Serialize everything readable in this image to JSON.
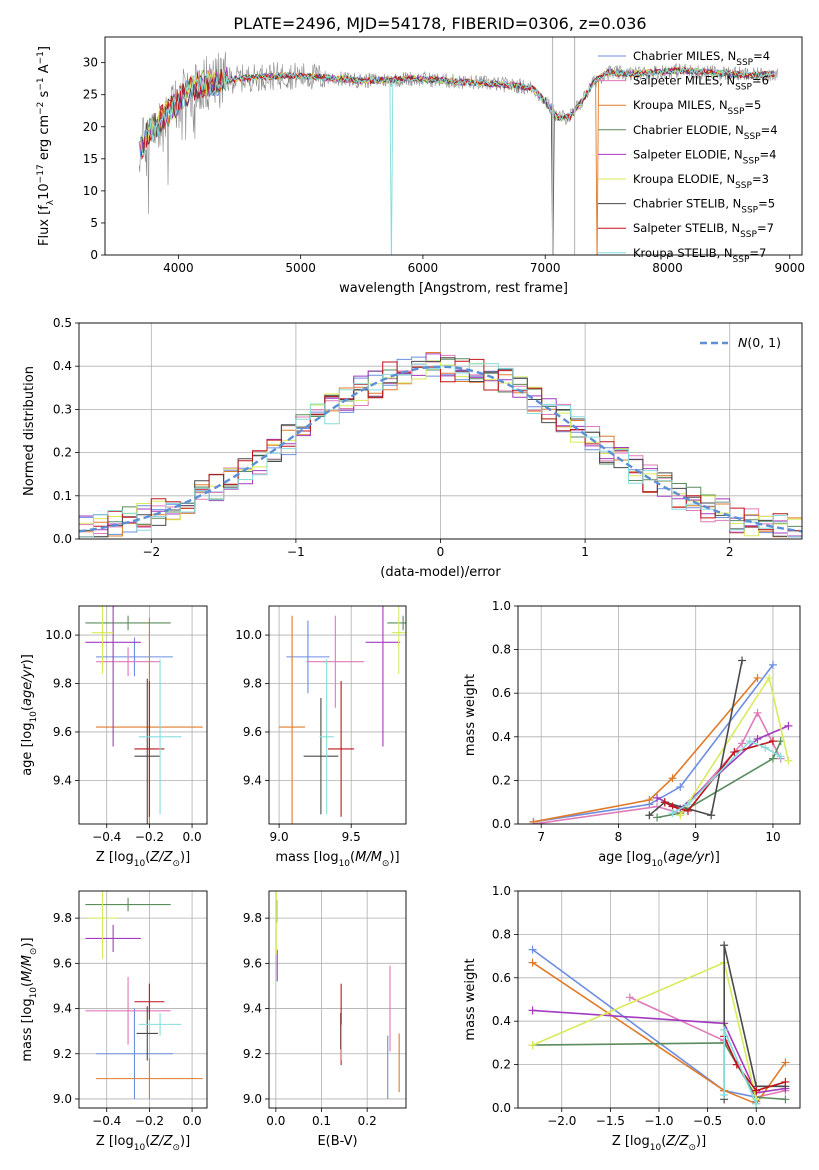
{
  "figure_title": "PLATE=2496, MJD=54178, FIBERID=0306, z=0.036",
  "colors": {
    "Chabrier MILES": "#6c8ee0",
    "Salpeter MILES": "#e07ab8",
    "Kroupa MILES": "#e07b2a",
    "Chabrier ELODIE": "#5b8c5e",
    "Salpeter ELODIE": "#a23bbf",
    "Kroupa ELODIE": "#d9ea5a",
    "Chabrier STELIB": "#4a4a4a",
    "Salpeter STELIB": "#c0141c",
    "Kroupa STELIB": "#86dcdc",
    "normal_curve": "#5b8fd6",
    "grid": "#b0b0b0"
  },
  "chart_data": [
    {
      "id": "spectrum",
      "type": "line",
      "xlabel": "wavelength [Angstrom, rest frame]",
      "ylabel": "Flux [f_λ 10^-17 erg cm^-2 s^-1 A^-1]",
      "xlim": [
        3400,
        9100
      ],
      "ylim": [
        0,
        34
      ],
      "xticks": [
        4000,
        5000,
        6000,
        7000,
        8000,
        9000
      ],
      "yticks": [
        0,
        5,
        10,
        15,
        20,
        25,
        30
      ],
      "grid": false,
      "legend_position": "top-right",
      "legend": [
        "Chabrier MILES, N_SSP=4",
        "Salpeter MILES, N_SSP=6",
        "Kroupa MILES, N_SSP=5",
        "Chabrier ELODIE, N_SSP=4",
        "Salpeter ELODIE, N_SSP=4",
        "Kroupa ELODIE, N_SSP=3",
        "Chabrier STELIB, N_SSP=5",
        "Salpeter STELIB, N_SSP=7",
        "Kroupa STELIB, N_SSP=7"
      ],
      "data_profile": {
        "x": [
          3680,
          3750,
          3850,
          3950,
          4050,
          4150,
          4300,
          4500,
          4700,
          4900,
          5100,
          5300,
          5500,
          5700,
          5900,
          6100,
          6300,
          6500,
          6700,
          6800,
          6900,
          7000,
          7100,
          7200,
          7300,
          7400,
          7500,
          7700,
          7900,
          8100,
          8300,
          8500,
          8700,
          8900
        ],
        "y": [
          16,
          19,
          21,
          23,
          25,
          26.5,
          27,
          27.5,
          27.8,
          28,
          27.8,
          27.5,
          27.2,
          27.3,
          27.5,
          27.3,
          27,
          26.8,
          26.5,
          26.3,
          26,
          24,
          21.5,
          21.5,
          24,
          27,
          28.5,
          28.2,
          28.5,
          28.8,
          28.5,
          28.3,
          28,
          28.3
        ]
      }
    },
    {
      "id": "residuals",
      "type": "histogram",
      "xlabel": "(data-model)/error",
      "ylabel": "Normed distribution",
      "xlim": [
        -2.5,
        2.5
      ],
      "ylim": [
        0,
        0.5
      ],
      "xticks": [
        -2,
        -1,
        0,
        1,
        2
      ],
      "yticks": [
        0.0,
        0.1,
        0.2,
        0.3,
        0.4,
        0.5
      ],
      "grid": true,
      "legend": [
        "N(0, 1)"
      ],
      "legend_position": "top-right"
    },
    {
      "id": "age_vs_Z",
      "type": "errorbar",
      "xlabel": "Z [log10(Z/Z⊙)]",
      "ylabel": "age [log10(age/yr)]",
      "xlim": [
        -0.53,
        0.07
      ],
      "ylim": [
        9.22,
        10.12
      ],
      "xticks": [
        -0.4,
        -0.2,
        0.0
      ],
      "yticks": [
        9.4,
        9.6,
        9.8,
        10.0
      ],
      "grid": true,
      "points": [
        {
          "model": "Chabrier MILES",
          "x": -0.27,
          "xerr": 0.18,
          "y": 9.91,
          "yerr": 0.08
        },
        {
          "model": "Salpeter MILES",
          "x": -0.3,
          "xerr": 0.15,
          "y": 9.89,
          "yerr": 0.06
        },
        {
          "model": "Kroupa MILES",
          "x": -0.2,
          "xerr": 0.25,
          "y": 9.62,
          "yerr": 0.45
        },
        {
          "model": "Chabrier ELODIE",
          "x": -0.3,
          "xerr": 0.2,
          "y": 10.05,
          "yerr": 0.03
        },
        {
          "model": "Salpeter ELODIE",
          "x": -0.37,
          "xerr": 0.13,
          "y": 9.97,
          "yerr": 0.43
        },
        {
          "model": "Kroupa ELODIE",
          "x": -0.42,
          "xerr": 0.05,
          "y": 10.01,
          "yerr": 0.17
        },
        {
          "model": "Chabrier STELIB",
          "x": -0.21,
          "xerr": 0.06,
          "y": 9.5,
          "yerr": 0.32
        },
        {
          "model": "Salpeter STELIB",
          "x": -0.2,
          "xerr": 0.07,
          "y": 9.53,
          "yerr": 0.28
        },
        {
          "model": "Kroupa STELIB",
          "x": -0.15,
          "xerr": 0.1,
          "y": 9.58,
          "yerr": 0.32
        }
      ]
    },
    {
      "id": "age_vs_mass",
      "type": "errorbar",
      "xlabel": "mass [log10(M/M⊙)]",
      "ylabel": "",
      "xlim": [
        8.93,
        9.88
      ],
      "ylim": [
        9.22,
        10.12
      ],
      "xticks": [
        9.0,
        9.5
      ],
      "yticks": [
        9.4,
        9.6,
        9.8,
        10.0
      ],
      "grid": true,
      "points": [
        {
          "model": "Chabrier MILES",
          "x": 9.2,
          "xerr": 0.15,
          "y": 9.91,
          "yerr": 0.15
        },
        {
          "model": "Salpeter MILES",
          "x": 9.39,
          "xerr": 0.2,
          "y": 9.89,
          "yerr": 0.19
        },
        {
          "model": "Kroupa MILES",
          "x": 9.09,
          "xerr": 0.09,
          "y": 9.62,
          "yerr": 0.46
        },
        {
          "model": "Chabrier ELODIE",
          "x": 9.86,
          "xerr": 0.11,
          "y": 10.05,
          "yerr": 0.03
        },
        {
          "model": "Salpeter ELODIE",
          "x": 9.72,
          "xerr": 0.12,
          "y": 9.97,
          "yerr": 0.43
        },
        {
          "model": "Kroupa ELODIE",
          "x": 9.83,
          "xerr": 0.05,
          "y": 10.01,
          "yerr": 0.17
        },
        {
          "model": "Chabrier STELIB",
          "x": 9.29,
          "xerr": 0.12,
          "y": 9.5,
          "yerr": 0.24
        },
        {
          "model": "Salpeter STELIB",
          "x": 9.43,
          "xerr": 0.09,
          "y": 9.53,
          "yerr": 0.28
        },
        {
          "model": "Kroupa STELIB",
          "x": 9.33,
          "xerr": 0.05,
          "y": 9.58,
          "yerr": 0.32
        }
      ]
    },
    {
      "id": "weight_vs_age",
      "type": "line",
      "xlabel": "age [log10(age/yr)]",
      "ylabel": "mass weight",
      "xlim": [
        6.7,
        10.35
      ],
      "ylim": [
        0,
        1.0
      ],
      "xticks": [
        7,
        8,
        9,
        10
      ],
      "yticks": [
        0.0,
        0.2,
        0.4,
        0.6,
        0.8,
        1.0
      ],
      "grid": true,
      "series": [
        {
          "model": "Chabrier MILES",
          "x": [
            6.9,
            8.4,
            8.8,
            10.0
          ],
          "y": [
            0.01,
            0.09,
            0.17,
            0.73
          ]
        },
        {
          "model": "Salpeter MILES",
          "x": [
            6.9,
            8.5,
            8.8,
            9.6,
            9.8,
            10.1
          ],
          "y": [
            0.0,
            0.08,
            0.05,
            0.37,
            0.51,
            0.3
          ]
        },
        {
          "model": "Kroupa MILES",
          "x": [
            6.9,
            8.4,
            8.7,
            9.8
          ],
          "y": [
            0.01,
            0.11,
            0.21,
            0.67
          ]
        },
        {
          "model": "Chabrier ELODIE",
          "x": [
            8.5,
            8.8,
            10.0,
            10.1
          ],
          "y": [
            0.03,
            0.05,
            0.3,
            0.38
          ]
        },
        {
          "model": "Salpeter ELODIE",
          "x": [
            8.5,
            8.8,
            9.8,
            10.2
          ],
          "y": [
            0.12,
            0.07,
            0.39,
            0.45
          ]
        },
        {
          "model": "Kroupa ELODIE",
          "x": [
            8.8,
            9.95,
            10.2
          ],
          "y": [
            0.04,
            0.67,
            0.29
          ]
        },
        {
          "model": "Chabrier STELIB",
          "x": [
            8.4,
            8.6,
            9.2,
            9.6
          ],
          "y": [
            0.04,
            0.1,
            0.04,
            0.75
          ]
        },
        {
          "model": "Salpeter STELIB",
          "x": [
            8.6,
            8.7,
            8.9,
            9.5,
            10.0
          ],
          "y": [
            0.1,
            0.08,
            0.06,
            0.33,
            0.38
          ]
        },
        {
          "model": "Kroupa STELIB",
          "x": [
            8.7,
            8.9,
            9.7,
            9.9,
            10.1
          ],
          "y": [
            0.05,
            0.09,
            0.38,
            0.35,
            0.31
          ]
        }
      ]
    },
    {
      "id": "mass_vs_Z",
      "type": "errorbar",
      "xlabel": "Z [log10(Z/Z⊙)]",
      "ylabel": "mass [log10(M/M⊙)]",
      "xlim": [
        -0.53,
        0.07
      ],
      "ylim": [
        8.96,
        9.92
      ],
      "xticks": [
        -0.4,
        -0.2,
        0.0
      ],
      "yticks": [
        9.0,
        9.2,
        9.4,
        9.6,
        9.8
      ],
      "grid": true,
      "points": [
        {
          "model": "Chabrier MILES",
          "x": -0.27,
          "xerr": 0.18,
          "y": 9.2,
          "yerr": 0.2
        },
        {
          "model": "Salpeter MILES",
          "x": -0.3,
          "xerr": 0.2,
          "y": 9.39,
          "yerr": 0.15
        },
        {
          "model": "Kroupa MILES",
          "x": -0.2,
          "xerr": 0.25,
          "y": 9.09,
          "yerr": 0.09
        },
        {
          "model": "Chabrier ELODIE",
          "x": -0.3,
          "xerr": 0.2,
          "y": 9.86,
          "yerr": 0.03
        },
        {
          "model": "Salpeter ELODIE",
          "x": -0.37,
          "xerr": 0.13,
          "y": 9.71,
          "yerr": 0.06
        },
        {
          "model": "Kroupa ELODIE",
          "x": -0.42,
          "xerr": 0.07,
          "y": 9.8,
          "yerr": 0.18
        },
        {
          "model": "Chabrier STELIB",
          "x": -0.21,
          "xerr": 0.05,
          "y": 9.29,
          "yerr": 0.12
        },
        {
          "model": "Salpeter STELIB",
          "x": -0.2,
          "xerr": 0.07,
          "y": 9.43,
          "yerr": 0.08
        },
        {
          "model": "Kroupa STELIB",
          "x": -0.15,
          "xerr": 0.1,
          "y": 9.33,
          "yerr": 0.05
        }
      ]
    },
    {
      "id": "mass_vs_EBV",
      "type": "errorbar",
      "xlabel": "E(B-V)",
      "ylabel": "",
      "xlim": [
        -0.015,
        0.285
      ],
      "ylim": [
        8.96,
        9.92
      ],
      "xticks": [
        0.0,
        0.1,
        0.2
      ],
      "yticks": [
        9.0,
        9.2,
        9.4,
        9.6,
        9.8
      ],
      "grid": true,
      "points": [
        {
          "model": "Chabrier MILES",
          "x": 0.245,
          "y": 9.14,
          "yerr": 0.14
        },
        {
          "model": "Salpeter MILES",
          "x": 0.25,
          "y": 9.4,
          "yerr": 0.19
        },
        {
          "model": "Kroupa MILES",
          "x": 0.27,
          "y": 9.16,
          "yerr": 0.13
        },
        {
          "model": "Chabrier ELODIE",
          "x": 0.002,
          "y": 9.83,
          "yerr": 0.05
        },
        {
          "model": "Salpeter ELODIE",
          "x": 0.003,
          "y": 9.59,
          "yerr": 0.07
        },
        {
          "model": "Kroupa ELODIE",
          "x": 0.001,
          "y": 9.78,
          "yerr": 0.14
        },
        {
          "model": "Chabrier STELIB",
          "x": 0.142,
          "y": 9.3,
          "yerr": 0.08
        },
        {
          "model": "Salpeter STELIB",
          "x": 0.143,
          "y": 9.33,
          "yerr": 0.18
        },
        {
          "model": "Kroupa STELIB",
          "x": 0.144,
          "y": 9.25,
          "yerr": 0.08
        }
      ]
    },
    {
      "id": "weight_vs_Z",
      "type": "line",
      "xlabel": "Z [log10(Z/Z⊙)]",
      "ylabel": "mass weight",
      "xlim": [
        -2.45,
        0.45
      ],
      "ylim": [
        0,
        1.0
      ],
      "xticks": [
        -2.0,
        -1.5,
        -1.0,
        -0.5,
        0.0
      ],
      "yticks": [
        0.0,
        0.2,
        0.4,
        0.6,
        0.8,
        1.0
      ],
      "grid": true,
      "series": [
        {
          "model": "Chabrier MILES",
          "x": [
            -2.3,
            -0.33,
            0.0,
            0.0
          ],
          "y": [
            0.73,
            0.08,
            0.05,
            0.03
          ]
        },
        {
          "model": "Salpeter MILES",
          "x": [
            -1.3,
            -0.33,
            0.0,
            0.3
          ],
          "y": [
            0.51,
            0.31,
            0.05,
            0.08
          ]
        },
        {
          "model": "Kroupa MILES",
          "x": [
            -2.3,
            -0.33,
            0.0,
            0.3
          ],
          "y": [
            0.67,
            0.08,
            0.02,
            0.21
          ]
        },
        {
          "model": "Chabrier ELODIE",
          "x": [
            -2.3,
            -0.33,
            0.0,
            0.3
          ],
          "y": [
            0.29,
            0.3,
            0.05,
            0.04
          ]
        },
        {
          "model": "Salpeter ELODIE",
          "x": [
            -2.3,
            -0.33,
            0.0,
            0.3
          ],
          "y": [
            0.45,
            0.39,
            0.07,
            0.09
          ]
        },
        {
          "model": "Kroupa ELODIE",
          "x": [
            -2.3,
            -0.33,
            0.0
          ],
          "y": [
            0.29,
            0.67,
            0.04
          ]
        },
        {
          "model": "Chabrier STELIB",
          "x": [
            -0.33,
            -0.33,
            0.0,
            0.3
          ],
          "y": [
            0.04,
            0.75,
            0.1,
            0.1
          ]
        },
        {
          "model": "Salpeter STELIB",
          "x": [
            -0.33,
            -0.2,
            0.0,
            0.3
          ],
          "y": [
            0.33,
            0.2,
            0.08,
            0.12
          ]
        },
        {
          "model": "Kroupa STELIB",
          "x": [
            -0.33,
            -0.33,
            0.0
          ],
          "y": [
            0.06,
            0.36,
            0.02
          ]
        }
      ]
    }
  ]
}
